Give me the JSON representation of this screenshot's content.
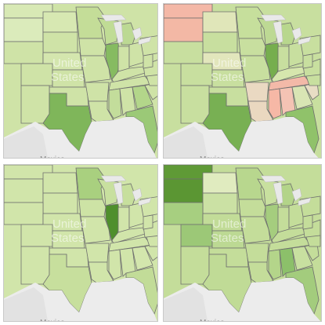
{
  "maps": [
    {
      "name": "map-top-left",
      "country_label_line1": "United",
      "country_label_line2": "States",
      "neighbor_label": "Mexico",
      "state_fills": {
        "base": "#cfe3a7",
        "wa": "#d8e9b5",
        "mt": "#dbebbb",
        "nd": "#d7e8b2",
        "mn": "#c4dd98",
        "wi": "#c0dc95",
        "il": "#86bb61",
        "tx": "#7fb65a",
        "fl": "#9bc977",
        "ga": "#b3d68a",
        "ms": "#c3dd9b",
        "mi": "#bcd993",
        "ne": "#d4e6ae",
        "ca": "#d6e8b3"
      }
    },
    {
      "name": "map-top-right",
      "country_label_line1": "United",
      "country_label_line2": "States",
      "neighbor_label": "Mexico",
      "state_fills": {
        "base": "#c8df9f",
        "wa": "#f4b8a7",
        "mt": "#f3b8a5",
        "nd": "#e0e6b9",
        "ne": "#e2e6bc",
        "mn": "#c6df9c",
        "wi": "#bdd994",
        "il": "#76ae4e",
        "tx": "#78b053",
        "ms": "#f6b8a6",
        "al": "#f4c3b4",
        "tn": "#f3b9a8",
        "ga": "#d9e5b4",
        "sc": "#e8ddc4",
        "ar": "#ead9c2",
        "la": "#ead8c0",
        "fl": "#90c26a",
        "ky": "#d6e6ad",
        "mi": "#b8d78d"
      }
    },
    {
      "name": "map-bottom-left",
      "country_label_line1": "United",
      "country_label_line2": "States",
      "neighbor_label": "Mexico",
      "state_fills": {
        "base": "#d1e5aa",
        "mn": "#a9d07f",
        "il": "#4f8f2c",
        "wi": "#c8e09f",
        "tx": "#c7df9d",
        "fl": "#c2dc98",
        "mi": "#c7df9d",
        "ia": "#cde3a5",
        "ga": "#d3e6ad"
      }
    },
    {
      "name": "map-bottom-right",
      "country_label_line1": "United",
      "country_label_line2": "States",
      "neighbor_label": "Mexico",
      "state_fills": {
        "base": "#c4dd9a",
        "wa": "#5f9a36",
        "mt": "#5b9633",
        "nd": "#e0ebbf",
        "wy": "#a7cf80",
        "co": "#9cc877",
        "sd": "#cbe1a4",
        "ne": "#c2dc98",
        "ks": "#bcd993",
        "mn": "#b8d78e",
        "il": "#a5cd7e",
        "al": "#8cc06a",
        "fl": "#a3cc7d",
        "tx": "#c0db96",
        "wi": "#c8e09f",
        "mi": "#b3d489",
        "ga": "#c8e0a0",
        "ms": "#b4d58a"
      }
    }
  ]
}
